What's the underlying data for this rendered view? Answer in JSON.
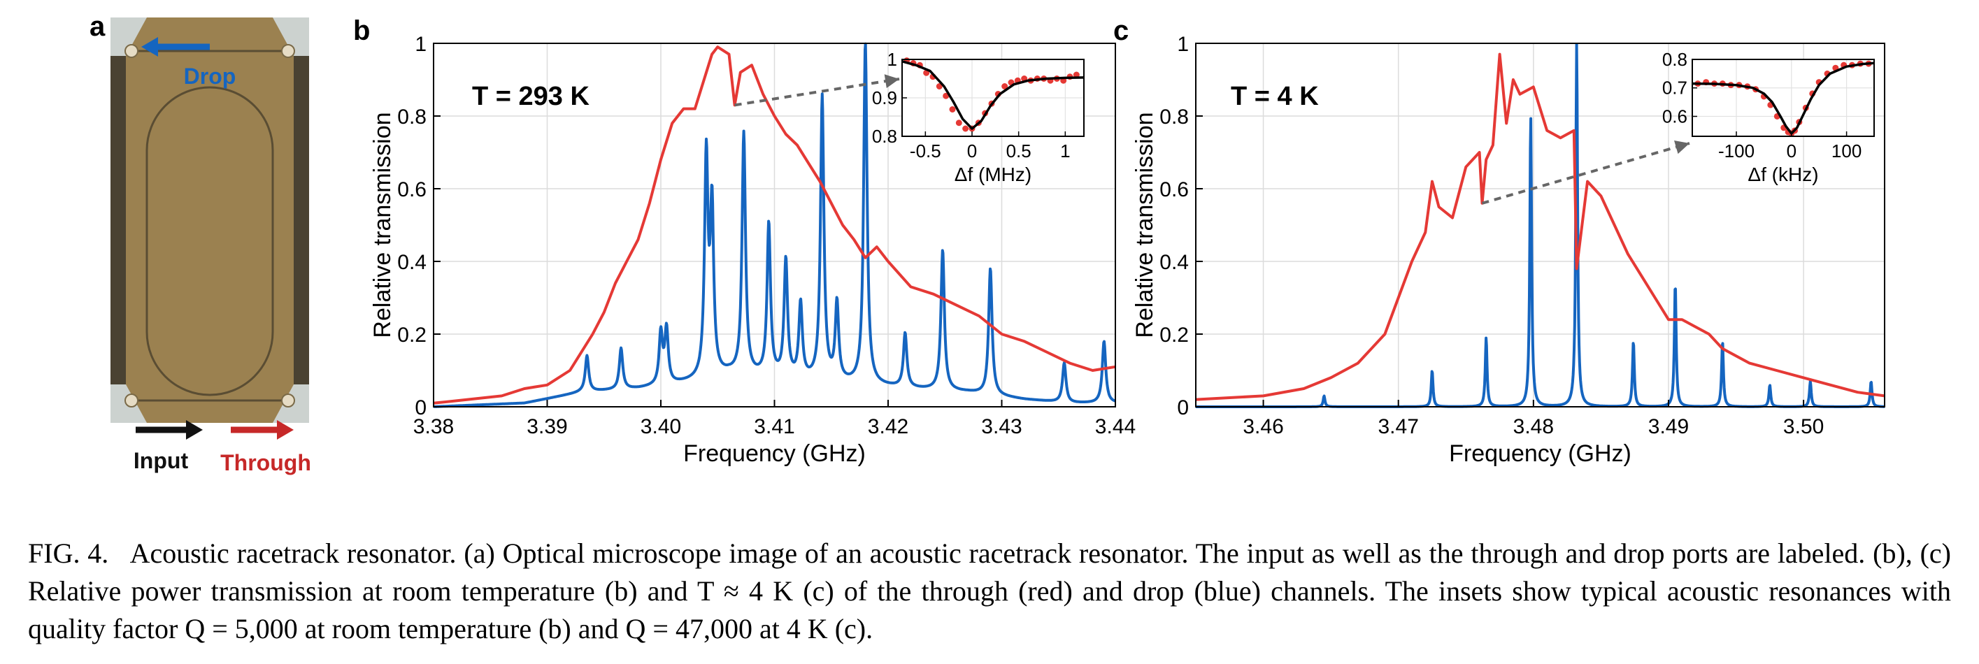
{
  "panel_a": {
    "label": "a",
    "drop_label": "Drop",
    "input_label": "Input",
    "through_label": "Through",
    "colors": {
      "chip": "#9b8150",
      "drop": "#1565c0",
      "through": "#c62828",
      "input": "#111111"
    }
  },
  "panel_b": {
    "label": "b",
    "annotation": "T = 293 K"
  },
  "panel_c": {
    "label": "c",
    "annotation": "T = 4 K"
  },
  "caption": {
    "fig_label": "FIG. 4.",
    "text": "Acoustic racetrack resonator. (a) Optical microscope image of an acoustic racetrack resonator. The input as well as the through and drop ports are labeled. (b), (c) Relative power transmission at room temperature (b) and T ≈ 4 K (c) of the through (red) and drop (blue) channels. The insets show typical acoustic resonances with quality factor Q = 5,000 at room temperature (b) and Q = 47,000 at 4 K (c)."
  },
  "chart_data": [
    {
      "type": "line",
      "panel": "b",
      "xlabel": "Frequency (GHz)",
      "ylabel": "Relative transmission",
      "xlim": [
        3.38,
        3.44
      ],
      "ylim": [
        0,
        1
      ],
      "xticks": [
        3.38,
        3.39,
        3.4,
        3.41,
        3.42,
        3.43,
        3.44
      ],
      "xtick_labels": [
        "3.38",
        "3.39",
        "3.40",
        "3.41",
        "3.42",
        "3.43",
        "3.44"
      ],
      "yticks": [
        0,
        0.2,
        0.4,
        0.6,
        0.8,
        1
      ],
      "ytick_labels": [
        "0",
        "0.2",
        "0.4",
        "0.6",
        "0.8",
        "1"
      ],
      "grid": true,
      "series": [
        {
          "color": "#e53935",
          "x": [
            3.38,
            3.383,
            3.386,
            3.388,
            3.39,
            3.392,
            3.394,
            3.395,
            3.396,
            3.397,
            3.398,
            3.399,
            3.4,
            3.401,
            3.402,
            3.403,
            3.404,
            3.4045,
            3.405,
            3.406,
            3.4065,
            3.407,
            3.408,
            3.409,
            3.41,
            3.411,
            3.412,
            3.413,
            3.414,
            3.415,
            3.416,
            3.417,
            3.418,
            3.419,
            3.42,
            3.422,
            3.424,
            3.426,
            3.428,
            3.43,
            3.432,
            3.434,
            3.436,
            3.438,
            3.44
          ],
          "y": [
            0.01,
            0.02,
            0.03,
            0.05,
            0.06,
            0.1,
            0.2,
            0.26,
            0.34,
            0.4,
            0.46,
            0.56,
            0.68,
            0.78,
            0.82,
            0.82,
            0.92,
            0.97,
            0.99,
            0.97,
            0.83,
            0.92,
            0.94,
            0.86,
            0.8,
            0.75,
            0.72,
            0.67,
            0.62,
            0.56,
            0.5,
            0.46,
            0.41,
            0.44,
            0.4,
            0.33,
            0.31,
            0.28,
            0.25,
            0.2,
            0.18,
            0.15,
            0.12,
            0.1,
            0.11
          ]
        },
        {
          "color": "#1565c0",
          "baseline": [
            [
              3.38,
              0.0
            ],
            [
              3.388,
              0.01
            ],
            [
              3.393,
              0.04
            ],
            [
              3.398,
              0.05
            ],
            [
              3.403,
              0.07
            ],
            [
              3.406,
              0.09
            ],
            [
              3.41,
              0.08
            ],
            [
              3.414,
              0.07
            ],
            [
              3.418,
              0.06
            ],
            [
              3.422,
              0.05
            ],
            [
              3.427,
              0.04
            ],
            [
              3.432,
              0.02
            ],
            [
              3.436,
              0.01
            ],
            [
              3.44,
              0.01
            ]
          ],
          "peaks": [
            [
              3.3935,
              0.14
            ],
            [
              3.3965,
              0.16
            ],
            [
              3.4,
              0.2
            ],
            [
              3.4005,
              0.21
            ],
            [
              3.404,
              0.68
            ],
            [
              3.4045,
              0.54
            ],
            [
              3.4073,
              0.75
            ],
            [
              3.4095,
              0.5
            ],
            [
              3.411,
              0.4
            ],
            [
              3.4123,
              0.28
            ],
            [
              3.4142,
              0.85
            ],
            [
              3.4155,
              0.28
            ],
            [
              3.418,
              1.0
            ],
            [
              3.4215,
              0.2
            ],
            [
              3.4248,
              0.43
            ],
            [
              3.429,
              0.38
            ],
            [
              3.4355,
              0.12
            ],
            [
              3.439,
              0.18
            ]
          ]
        }
      ]
    },
    {
      "type": "scatter",
      "panel": "b-inset",
      "xlabel": "Δf (MHz)",
      "xlim": [
        -0.75,
        1.2
      ],
      "ylim": [
        0.8,
        1.0
      ],
      "xticks": [
        -0.5,
        0,
        0.5,
        1
      ],
      "xtick_labels": [
        "-0.5",
        "0",
        "0.5",
        "1"
      ],
      "yticks": [
        0.8,
        0.9,
        1
      ],
      "ytick_labels": [
        "0.8",
        "0.9",
        "1"
      ],
      "series": [
        {
          "color": "#e53935",
          "x": [
            -0.7,
            -0.63,
            -0.56,
            -0.49,
            -0.42,
            -0.35,
            -0.28,
            -0.21,
            -0.14,
            -0.07,
            0.0,
            0.07,
            0.14,
            0.21,
            0.28,
            0.35,
            0.42,
            0.49,
            0.56,
            0.63,
            0.7,
            0.77,
            0.84,
            0.91,
            0.98,
            1.05,
            1.12
          ],
          "y": [
            0.997,
            0.99,
            0.985,
            0.965,
            0.955,
            0.93,
            0.905,
            0.87,
            0.835,
            0.82,
            0.82,
            0.835,
            0.86,
            0.885,
            0.91,
            0.93,
            0.94,
            0.945,
            0.95,
            0.945,
            0.95,
            0.95,
            0.945,
            0.95,
            0.945,
            0.955,
            0.96
          ]
        },
        {
          "color": "#000000",
          "x": [
            -0.75,
            -0.6,
            -0.45,
            -0.3,
            -0.2,
            -0.1,
            0.0,
            0.1,
            0.2,
            0.3,
            0.45,
            0.6,
            0.8,
            1.0,
            1.2
          ],
          "y": [
            0.995,
            0.985,
            0.97,
            0.93,
            0.89,
            0.845,
            0.82,
            0.84,
            0.88,
            0.91,
            0.935,
            0.945,
            0.95,
            0.952,
            0.953
          ]
        }
      ]
    },
    {
      "type": "line",
      "panel": "c",
      "xlabel": "Frequency (GHz)",
      "ylabel": "Relative transmission",
      "xlim": [
        3.455,
        3.506
      ],
      "ylim": [
        0,
        1
      ],
      "xticks": [
        3.46,
        3.47,
        3.48,
        3.49,
        3.5
      ],
      "xtick_labels": [
        "3.46",
        "3.47",
        "3.48",
        "3.49",
        "3.50"
      ],
      "yticks": [
        0,
        0.2,
        0.4,
        0.6,
        0.8,
        1
      ],
      "ytick_labels": [
        "0",
        "0.2",
        "0.4",
        "0.6",
        "0.8",
        "1"
      ],
      "grid": true,
      "series": [
        {
          "color": "#e53935",
          "x": [
            3.455,
            3.46,
            3.463,
            3.465,
            3.467,
            3.468,
            3.469,
            3.47,
            3.471,
            3.472,
            3.4725,
            3.473,
            3.474,
            3.475,
            3.476,
            3.4762,
            3.4765,
            3.477,
            3.4775,
            3.478,
            3.4785,
            3.479,
            3.48,
            3.481,
            3.482,
            3.483,
            3.4832,
            3.484,
            3.485,
            3.486,
            3.487,
            3.488,
            3.489,
            3.49,
            3.491,
            3.492,
            3.493,
            3.494,
            3.496,
            3.498,
            3.5,
            3.502,
            3.504,
            3.506
          ],
          "y": [
            0.02,
            0.03,
            0.05,
            0.08,
            0.12,
            0.16,
            0.2,
            0.3,
            0.4,
            0.48,
            0.62,
            0.55,
            0.52,
            0.66,
            0.7,
            0.56,
            0.68,
            0.72,
            0.97,
            0.78,
            0.9,
            0.86,
            0.88,
            0.76,
            0.74,
            0.76,
            0.38,
            0.62,
            0.58,
            0.5,
            0.42,
            0.36,
            0.3,
            0.24,
            0.24,
            0.22,
            0.2,
            0.16,
            0.12,
            0.1,
            0.08,
            0.06,
            0.04,
            0.03
          ]
        },
        {
          "color": "#1565c0",
          "baseline": [
            [
              3.455,
              0.0
            ],
            [
              3.506,
              0.0
            ]
          ],
          "peaks": [
            [
              3.4645,
              0.03
            ],
            [
              3.4725,
              0.1
            ],
            [
              3.4765,
              0.19
            ],
            [
              3.4798,
              0.8
            ],
            [
              3.4832,
              1.0
            ],
            [
              3.4874,
              0.18
            ],
            [
              3.4905,
              0.34
            ],
            [
              3.494,
              0.18
            ],
            [
              3.4975,
              0.06
            ],
            [
              3.5005,
              0.07
            ],
            [
              3.505,
              0.07
            ]
          ]
        }
      ]
    },
    {
      "type": "scatter",
      "panel": "c-inset",
      "xlabel": "Δf (kHz)",
      "xlim": [
        -180,
        150
      ],
      "ylim": [
        0.53,
        0.8
      ],
      "xticks": [
        -100,
        0,
        100
      ],
      "xtick_labels": [
        "-100",
        "0",
        "100"
      ],
      "yticks": [
        0.6,
        0.7,
        0.8
      ],
      "ytick_labels": [
        "0.6",
        "0.7",
        "0.8"
      ],
      "series": [
        {
          "color": "#e53935",
          "x": [
            -170,
            -155,
            -140,
            -125,
            -110,
            -95,
            -80,
            -65,
            -50,
            -38,
            -26,
            -14,
            -6,
            0,
            6,
            14,
            26,
            38,
            50,
            65,
            80,
            95,
            110,
            125,
            140
          ],
          "y": [
            0.715,
            0.72,
            0.715,
            0.715,
            0.71,
            0.71,
            0.705,
            0.695,
            0.67,
            0.64,
            0.6,
            0.56,
            0.545,
            0.54,
            0.55,
            0.58,
            0.63,
            0.68,
            0.72,
            0.75,
            0.77,
            0.78,
            0.78,
            0.785,
            0.785
          ]
        },
        {
          "color": "#000000",
          "x": [
            -180,
            -140,
            -100,
            -70,
            -50,
            -35,
            -20,
            -10,
            0,
            10,
            20,
            35,
            50,
            70,
            100,
            130,
            150
          ],
          "y": [
            0.715,
            0.714,
            0.71,
            0.7,
            0.68,
            0.65,
            0.6,
            0.565,
            0.54,
            0.56,
            0.6,
            0.66,
            0.71,
            0.75,
            0.775,
            0.784,
            0.787
          ]
        }
      ]
    }
  ]
}
